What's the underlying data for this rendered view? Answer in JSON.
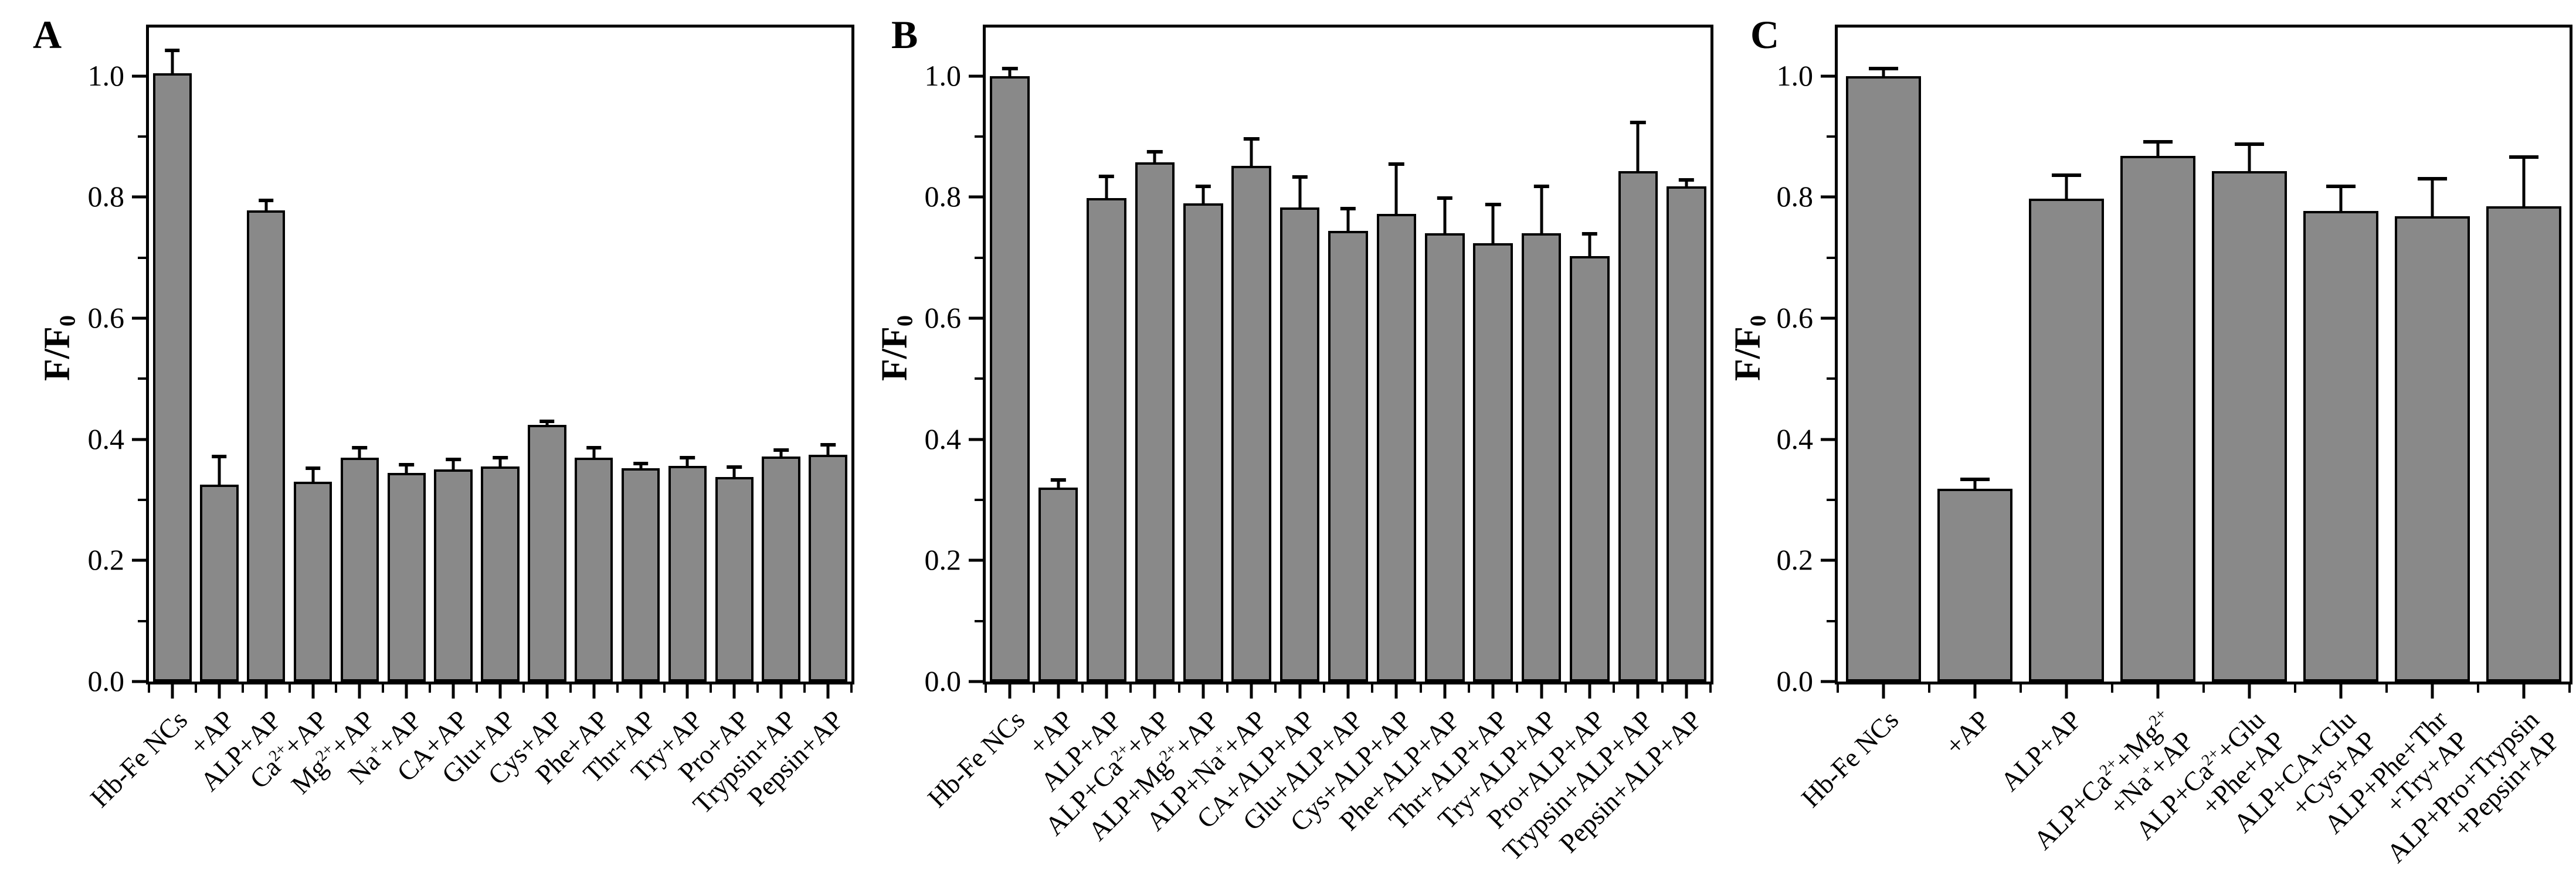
{
  "figure": {
    "background": "#ffffff",
    "bar_fill": "#898989",
    "bar_edge": "#000000",
    "axis_color": "#000000"
  },
  "chart_data": [
    {
      "type": "bar",
      "panel_label": "A",
      "title": "",
      "xlabel": "",
      "ylabel": "F/F_{0}",
      "ylim": [
        0,
        1.08
      ],
      "grid": false,
      "legend": null,
      "yticks_major": [
        0.0,
        0.2,
        0.4,
        0.6,
        0.8,
        1.0
      ],
      "yticks_minor": [
        0.1,
        0.3,
        0.5,
        0.7,
        0.9
      ],
      "categories": [
        "Hb-Fe NCs",
        "+AP",
        "ALP+AP",
        "Ca^{2+}+AP",
        "Mg^{2+}+AP",
        "Na^{+}+AP",
        "CA+AP",
        "Glu+AP",
        "Cys+AP",
        "Phe+AP",
        "Thr+AP",
        "Try+AP",
        "Pro+AP",
        "Trypsin+AP",
        "Pepsin+AP"
      ],
      "values": [
        1.005,
        0.325,
        0.778,
        0.33,
        0.37,
        0.345,
        0.35,
        0.355,
        0.424,
        0.37,
        0.352,
        0.356,
        0.338,
        0.372,
        0.375
      ],
      "errors": [
        0.037,
        0.047,
        0.017,
        0.022,
        0.016,
        0.013,
        0.017,
        0.015,
        0.006,
        0.016,
        0.008,
        0.014,
        0.016,
        0.01,
        0.016
      ]
    },
    {
      "type": "bar",
      "panel_label": "B",
      "title": "",
      "xlabel": "",
      "ylabel": "F/F_{0}",
      "ylim": [
        0,
        1.08
      ],
      "grid": false,
      "legend": null,
      "yticks_major": [
        0.0,
        0.2,
        0.4,
        0.6,
        0.8,
        1.0
      ],
      "yticks_minor": [
        0.1,
        0.3,
        0.5,
        0.7,
        0.9
      ],
      "categories": [
        "Hb-Fe NCs",
        "+AP",
        "ALP+AP",
        "ALP+Ca^{2+}+AP",
        "ALP+Mg^{2+}+AP",
        "ALP+Na^{+}+AP",
        "CA+ALP+AP",
        "Glu+ALP+AP",
        "Cys+ALP+AP",
        "Phe+ALP+AP",
        "Thr+ALP+AP",
        "Try+ALP+AP",
        "Pro+ALP+AP",
        "Trypsin+ALP+AP",
        "Pepsin+ALP+AP"
      ],
      "values": [
        1.0,
        0.32,
        0.798,
        0.857,
        0.79,
        0.852,
        0.783,
        0.744,
        0.772,
        0.74,
        0.724,
        0.74,
        0.703,
        0.843,
        0.818
      ],
      "errors": [
        0.012,
        0.013,
        0.036,
        0.018,
        0.028,
        0.044,
        0.05,
        0.037,
        0.083,
        0.058,
        0.064,
        0.078,
        0.036,
        0.08,
        0.01
      ]
    },
    {
      "type": "bar",
      "panel_label": "C",
      "title": "",
      "xlabel": "",
      "ylabel": "F/F_{0}",
      "ylim": [
        0,
        1.08
      ],
      "grid": false,
      "legend": null,
      "yticks_major": [
        0.0,
        0.2,
        0.4,
        0.6,
        0.8,
        1.0
      ],
      "yticks_minor": [
        0.1,
        0.3,
        0.5,
        0.7,
        0.9
      ],
      "categories": [
        "Hb-Fe NCs",
        "+AP",
        "ALP+AP",
        "ALP+Ca^{2+}+Mg^{2+}\n+Na^{+}+AP",
        "ALP+Ca^{2+}+Glu\n+Phe+AP",
        "ALP+CA+Glu\n+Cys+AP",
        "ALP+Phe+Thr\n+Try+AP",
        "ALP+Pro+Trypsin\n+Pepsin+AP"
      ],
      "values": [
        1.0,
        0.318,
        0.797,
        0.868,
        0.843,
        0.777,
        0.768,
        0.785
      ],
      "errors": [
        0.012,
        0.016,
        0.039,
        0.023,
        0.044,
        0.041,
        0.062,
        0.081
      ]
    }
  ]
}
